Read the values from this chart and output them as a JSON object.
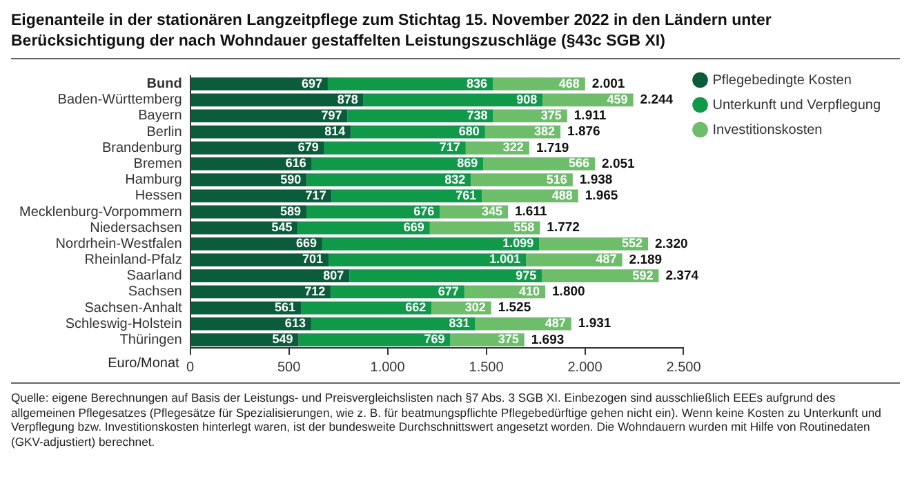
{
  "chart_data": {
    "type": "bar",
    "orientation": "horizontal",
    "stacked": true,
    "title": "Eigenanteile in der stationären Langzeitpflege zum Stichtag 15. November 2022 in den Ländern unter Berücksichtigung der nach Wohndauer gestaffelten Leistungszuschläge  (§43c SGB XI)",
    "xlabel": "Euro/Monat",
    "categories": [
      "Bund",
      "Baden-Württemberg",
      "Bayern",
      "Berlin",
      "Brandenburg",
      "Bremen",
      "Hamburg",
      "Hessen",
      "Mecklenburg-Vorpommern",
      "Niedersachsen",
      "Nordrhein-Westfalen",
      "Rheinland-Pfalz",
      "Saarland",
      "Sachsen",
      "Sachsen-Anhalt",
      "Schleswig-Holstein",
      "Thüringen"
    ],
    "series": [
      {
        "name": "Pflegebedingte Kosten",
        "color": "#0b5c3b",
        "values": [
          697,
          878,
          797,
          814,
          679,
          616,
          590,
          717,
          589,
          545,
          669,
          701,
          807,
          712,
          561,
          613,
          549
        ],
        "value_labels": [
          "697",
          "878",
          "797",
          "814",
          "679",
          "616",
          "590",
          "717",
          "589",
          "545",
          "669",
          "701",
          "807",
          "712",
          "561",
          "613",
          "549"
        ]
      },
      {
        "name": "Unterkunft und Verpflegung",
        "color": "#11994a",
        "values": [
          836,
          908,
          738,
          680,
          717,
          869,
          832,
          761,
          676,
          669,
          1099,
          1001,
          975,
          677,
          662,
          831,
          769
        ],
        "value_labels": [
          "836",
          "908",
          "738",
          "680",
          "717",
          "869",
          "832",
          "761",
          "676",
          "669",
          "1.099",
          "1.001",
          "975",
          "677",
          "662",
          "831",
          "769"
        ]
      },
      {
        "name": "Investitionskosten",
        "color": "#6dbd6b",
        "values": [
          468,
          459,
          375,
          382,
          322,
          566,
          516,
          488,
          345,
          558,
          552,
          487,
          592,
          410,
          302,
          487,
          375
        ],
        "value_labels": [
          "468",
          "459",
          "375",
          "382",
          "322",
          "566",
          "516",
          "488",
          "345",
          "558",
          "552",
          "487",
          "592",
          "410",
          "302",
          "487",
          "375"
        ]
      }
    ],
    "totals": [
      "2.001",
      "2.244",
      "1.911",
      "1.876",
      "1.719",
      "2.051",
      "1.938",
      "1.965",
      "1.611",
      "1.772",
      "2.320",
      "2.189",
      "2.374",
      "1.800",
      "1.525",
      "1.931",
      "1.693"
    ],
    "xlim": [
      0,
      2500
    ],
    "xticks": [
      0,
      500,
      {
        "value": 1000,
        "label": "1.000"
      },
      {
        "value": 1500,
        "label": "1.500"
      },
      {
        "value": 2000,
        "label": "2.000"
      },
      {
        "value": 2500,
        "label": "2.500"
      }
    ],
    "grid": false,
    "legend": "top right",
    "annotations": [
      "Quelle: eigene Berechnungen auf Basis der Leistungs- und Preisvergleichslisten nach §7 Abs. 3 SGB XI. Einbezogen sind ausschließlich EEEs aufgrund des allgemeinen Pflegesatzes (Pflegesätze für Spezialisierungen, wie z. B. für beatmungspflichte Pflegebedürftige gehen nicht ein). Wenn keine Kosten zu Unterkunft und Verpflegung bzw. Investitionskosten hinterlegt waren, ist der bundesweite Durchschnittswert angesetzt worden. Die Wohndauern wurden mit Hilfe von Routinedaten (GKV-adjustiert) berechnet."
    ]
  }
}
